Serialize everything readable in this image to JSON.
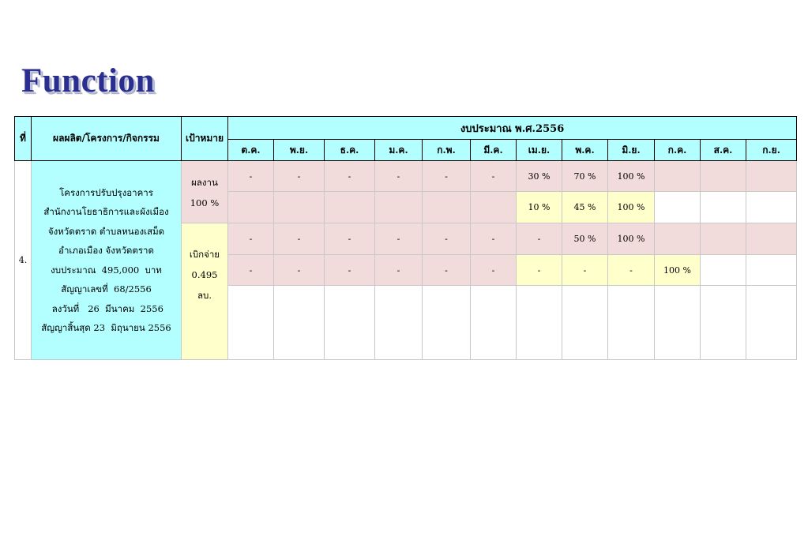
{
  "heading": "Function",
  "table": {
    "headers": {
      "no": "ที่",
      "project": "ผลผลิต/โครงการ/กิจกรรม",
      "target": "เป้าหมาย",
      "budget": "งบประมาณ พ.ศ.2556",
      "months": [
        "ต.ค.",
        "พ.ย.",
        "ธ.ค.",
        "ม.ค.",
        "ก.พ.",
        "มี.ค.",
        "เม.ย.",
        "พ.ค.",
        "มิ.ย.",
        "ก.ค.",
        "ส.ค.",
        "ก.ย."
      ]
    },
    "item": {
      "no": "4.",
      "project_lines": [
        "โครงการปรับปรุงอาคาร",
        "สำนักงานโยธาธิการและผังเมือง",
        "จังหวัดตราด ตำบลหนองเสม็ด",
        "อำเภอเมือง จังหวัดตราด",
        "งบประมาณ  495,000  บาท",
        "สัญญาเลขที่  68/2556",
        " ลงวันที่   26  มีนาคม  2556",
        "สัญญาสิ้นสุด 23  มิถุนายน 2556"
      ],
      "target_work": [
        "ผลงาน",
        "100 %"
      ],
      "target_spend": [
        "เบิกจ่าย",
        "0.495",
        "ลบ."
      ],
      "rows": [
        [
          "-",
          "-",
          "-",
          "-",
          "-",
          "-",
          "30 %",
          "70 %",
          "100 %",
          "",
          "",
          ""
        ],
        [
          "",
          "",
          "",
          "",
          "",
          "",
          "10 %",
          "45  %",
          "100  %",
          "",
          "",
          ""
        ],
        [
          "-",
          "-",
          "-",
          "-",
          "-",
          "-",
          "-",
          "50  %",
          "100  %",
          "",
          "",
          ""
        ],
        [
          "-",
          "-",
          "-",
          "-",
          "-",
          "-",
          "-",
          "-",
          "-",
          "100 %",
          "",
          ""
        ],
        [
          "",
          "",
          "",
          "",
          "",
          "",
          "",
          "",
          "",
          "",
          "",
          ""
        ]
      ],
      "row_colors": [
        [
          "pink",
          "pink",
          "pink",
          "pink",
          "pink",
          "pink",
          "pink",
          "pink",
          "pink",
          "pink",
          "pink",
          "pink"
        ],
        [
          "pink",
          "pink",
          "pink",
          "pink",
          "pink",
          "pink",
          "yellow",
          "yellow",
          "yellow",
          "white",
          "white",
          "white"
        ],
        [
          "pink",
          "pink",
          "pink",
          "pink",
          "pink",
          "pink",
          "pink",
          "pink",
          "pink",
          "pink",
          "pink",
          "pink"
        ],
        [
          "pink",
          "pink",
          "pink",
          "pink",
          "pink",
          "pink",
          "yellow",
          "yellow",
          "yellow",
          "yellow",
          "white",
          "white"
        ],
        [
          "white",
          "white",
          "white",
          "white",
          "white",
          "white",
          "white",
          "white",
          "white",
          "white",
          "white",
          "white"
        ]
      ]
    }
  },
  "colors": {
    "header_bg": "#b3ffff",
    "target_bg": "#ffffcc",
    "work_bg": "#f2dcdb",
    "heading": "#2a2f8f"
  }
}
